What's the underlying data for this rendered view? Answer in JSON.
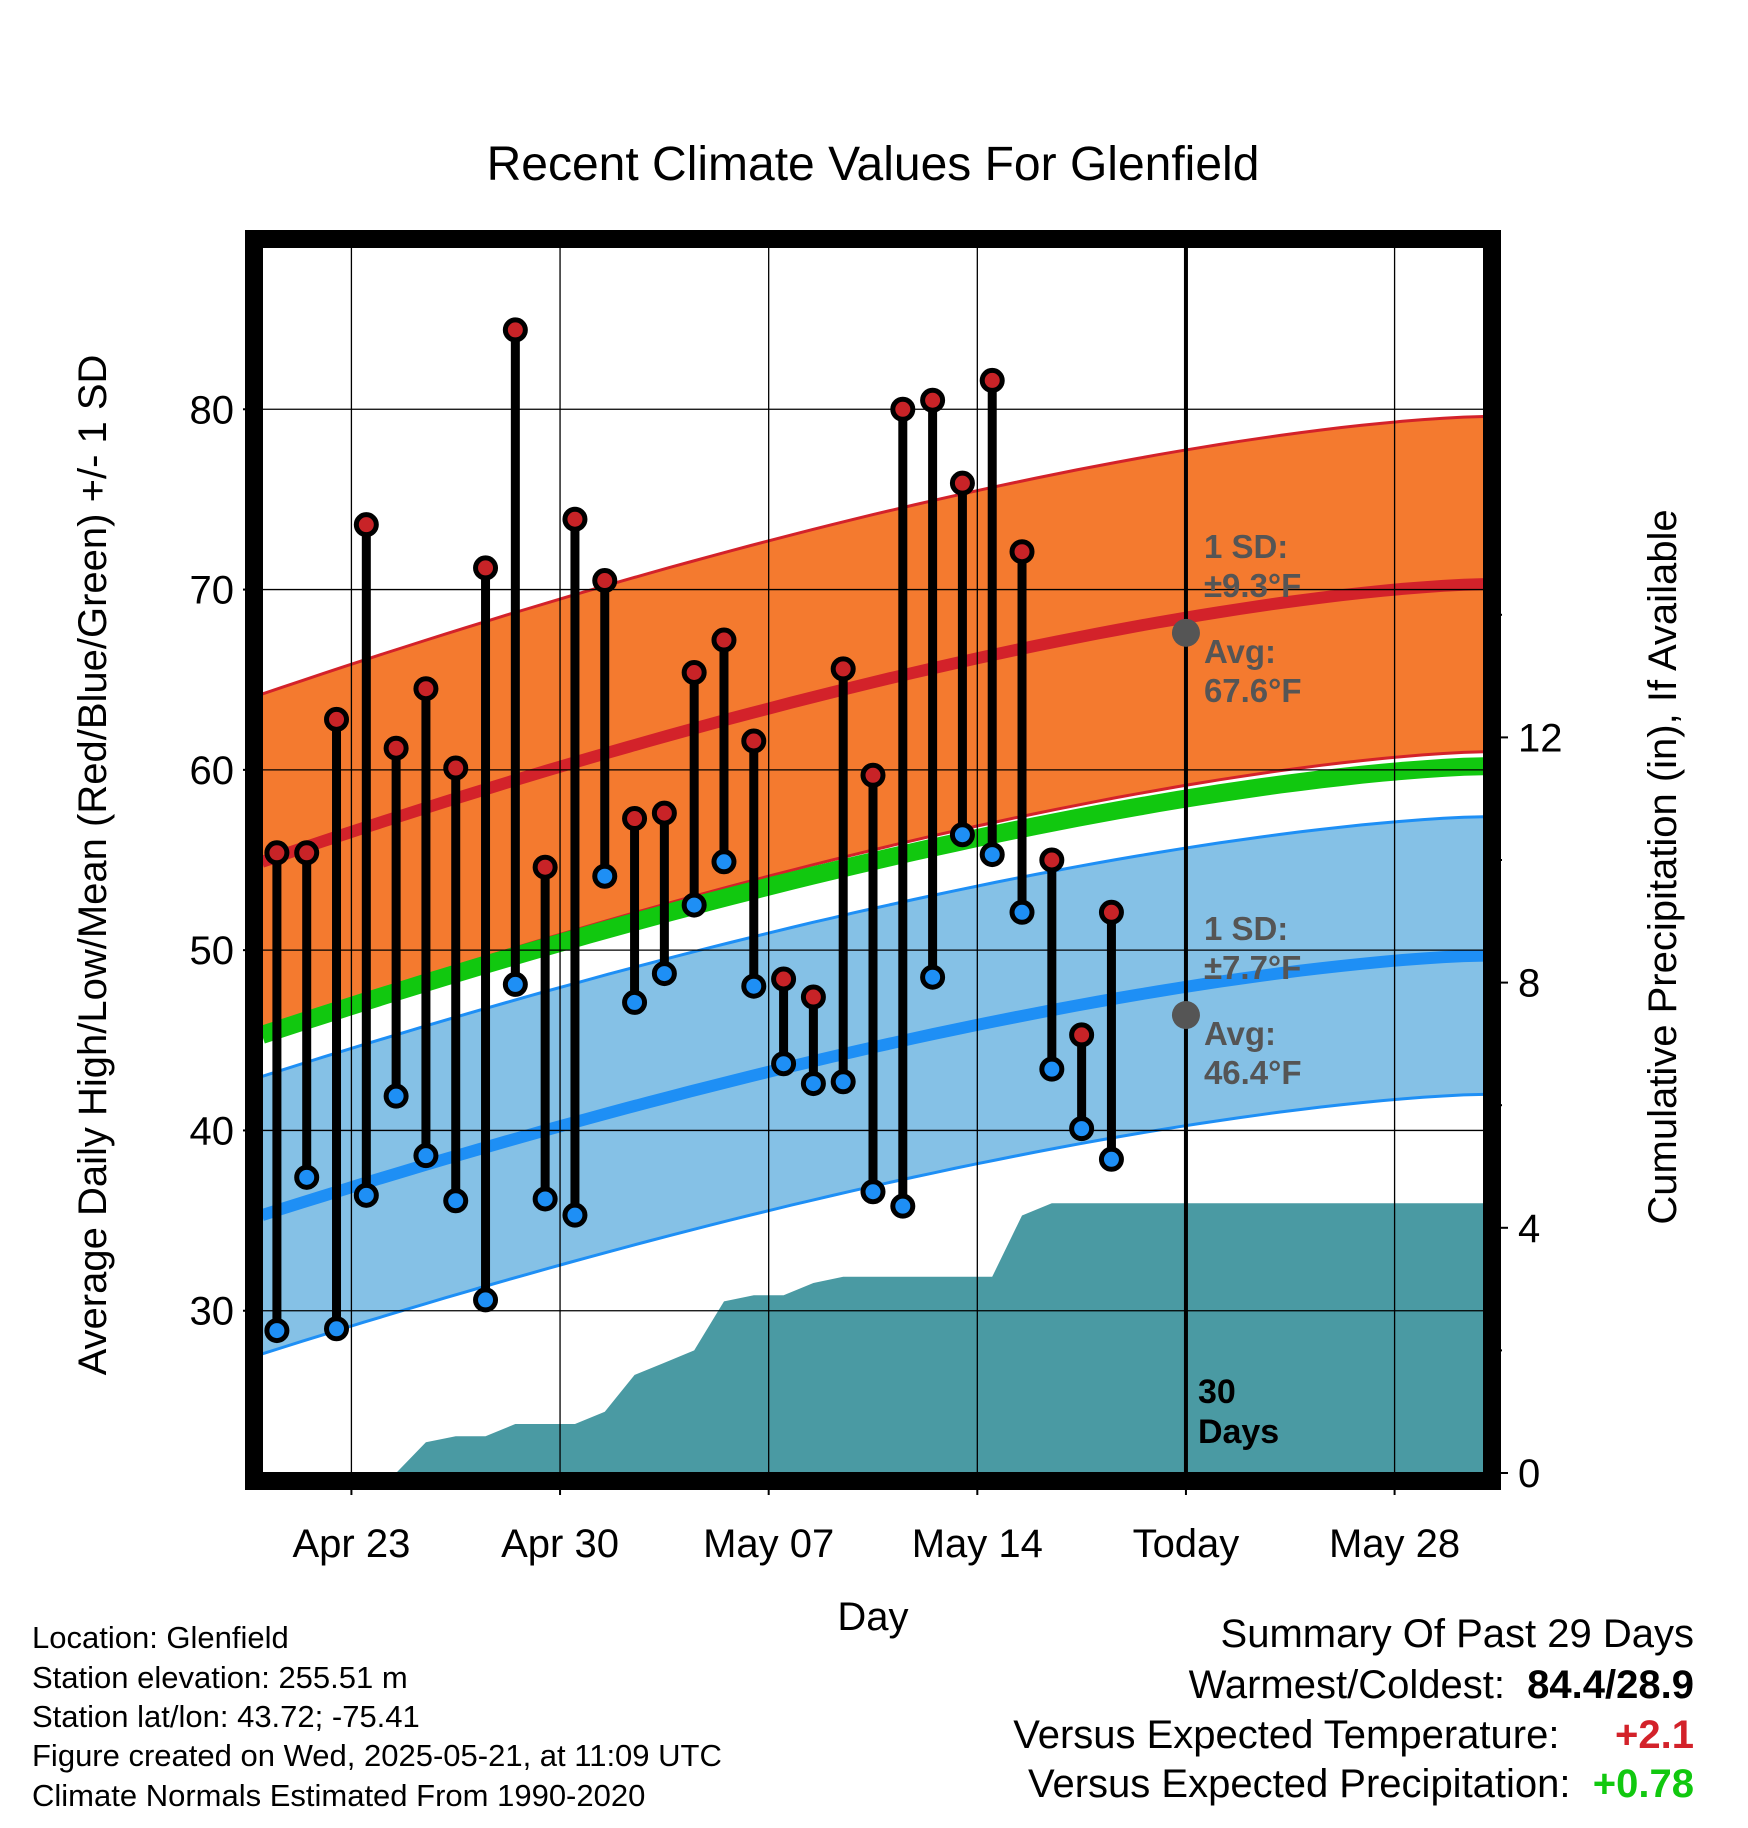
{
  "chart_data": {
    "type": "line",
    "title": "Recent Climate Values For Glenfield",
    "xlabel": "Day",
    "ylabel_left": "Average Daily High/Low/Mean (Red/Blue/Green) +/- 1 SD",
    "ylabel_right": "Cumulative Precipitation (in), If Available",
    "x_ticks": [
      {
        "day": 3,
        "label": "Apr 23"
      },
      {
        "day": 10,
        "label": "Apr 30"
      },
      {
        "day": 17,
        "label": "May 07"
      },
      {
        "day": 24,
        "label": "May 14"
      },
      {
        "day": 31,
        "label": "Today"
      },
      {
        "day": 38,
        "label": "May 28"
      }
    ],
    "x_range_days": [
      0,
      41
    ],
    "y_left_range": [
      21,
      89
    ],
    "y_left_ticks": [
      30,
      40,
      50,
      60,
      70,
      80
    ],
    "y_right_range": [
      0,
      20
    ],
    "y_right_ticks": [
      0,
      4,
      8,
      12
    ],
    "grid": true,
    "daily_highs": [
      55.4,
      55.4,
      62.8,
      73.6,
      61.2,
      64.5,
      60.1,
      71.2,
      84.4,
      54.6,
      73.9,
      70.5,
      57.3,
      57.6,
      65.4,
      67.2,
      61.6,
      48.4,
      47.4,
      65.6,
      59.7,
      80.0,
      80.5,
      75.9,
      81.6,
      72.1,
      55.0,
      45.3,
      52.1
    ],
    "daily_lows": [
      28.9,
      37.4,
      29.0,
      36.4,
      41.9,
      38.6,
      36.1,
      30.6,
      48.1,
      36.2,
      35.3,
      54.1,
      47.1,
      48.7,
      52.5,
      54.9,
      48.0,
      43.7,
      42.6,
      42.7,
      36.6,
      35.8,
      48.5,
      56.4,
      55.3,
      52.1,
      43.4,
      40.1,
      38.4
    ],
    "normal_high": {
      "start": 54.9,
      "end": 70.3,
      "sd": 9.3,
      "today_avg": 67.6
    },
    "normal_low": {
      "start": 35.3,
      "end": 49.7,
      "sd": 7.7,
      "today_avg": 46.4
    },
    "normal_mean": {
      "start": 45.3,
      "end": 60.2
    },
    "precip_cumulative": [
      0,
      0,
      0,
      0,
      0,
      0.5,
      0.6,
      0.6,
      0.8,
      0.8,
      0.8,
      1.0,
      1.6,
      1.8,
      2.0,
      2.8,
      2.9,
      2.9,
      3.1,
      3.2,
      3.2,
      3.2,
      3.2,
      3.2,
      3.2,
      4.2,
      4.4,
      4.4,
      4.4,
      4.4,
      4.4
    ],
    "annotations": {
      "high_sd": "1 SD:",
      "high_sd_val": "±9.3°F",
      "high_avg": "Avg:",
      "high_avg_val": "67.6°F",
      "low_sd": "1 SD:",
      "low_sd_val": "±7.7°F",
      "low_avg": "Avg:",
      "low_avg_val": "46.4°F",
      "days_num": "30",
      "days_word": "Days"
    },
    "colors": {
      "high_band": "#f47a2f",
      "high_line": "#d3222a",
      "low_band": "#85c1e6",
      "low_line": "#1e8ff5",
      "mean_line": "#11c80f",
      "precip": "#4a9aa3",
      "high_dot": "#c82327",
      "low_dot": "#1e8ff5",
      "avg_dot": "#555555",
      "annotation": "#555555"
    }
  },
  "info": {
    "location": "Location: Glenfield",
    "elevation": "Station elevation: 255.51 m",
    "latlon": "Station lat/lon: 43.72; -75.41",
    "created": "Figure created on Wed, 2025-05-21, at 11:09 UTC",
    "normals": "Climate Normals Estimated From 1990-2020"
  },
  "summary": {
    "title": "Summary Of Past 29 Days",
    "warm_cold_label": "Warmest/Coldest:",
    "warm_cold_value": "84.4/28.9",
    "temp_label": "Versus Expected Temperature:",
    "temp_value": "+2.1",
    "temp_color": "#d3222a",
    "precip_label": "Versus Expected Precipitation:",
    "precip_value": "+0.78",
    "precip_color": "#11c80f"
  }
}
